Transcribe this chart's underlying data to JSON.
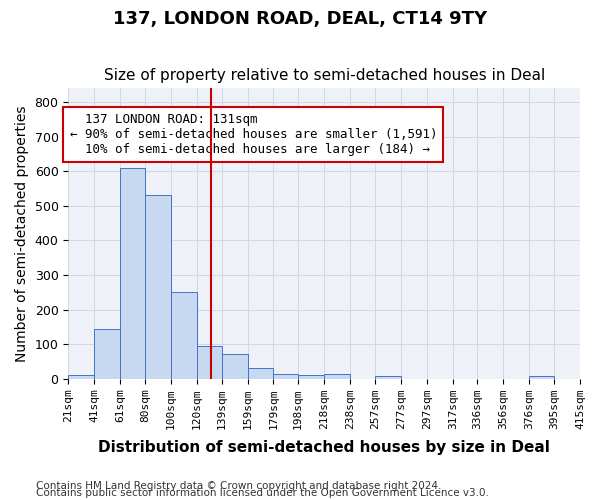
{
  "title": "137, LONDON ROAD, DEAL, CT14 9TY",
  "subtitle": "Size of property relative to semi-detached houses in Deal",
  "xlabel": "Distribution of semi-detached houses by size in Deal",
  "ylabel": "Number of semi-detached properties",
  "footnote1": "Contains HM Land Registry data © Crown copyright and database right 2024.",
  "footnote2": "Contains public sector information licensed under the Open Government Licence v3.0.",
  "bar_color": "#c6d9f0",
  "bar_edge_color": "#4472c4",
  "annotation_box_color": "#ffffff",
  "annotation_box_edge": "#cc0000",
  "vline_color": "#cc0000",
  "property_size": 131,
  "property_label": "137 LONDON ROAD: 131sqm",
  "pct_smaller": 90,
  "n_smaller": 1591,
  "pct_larger": 10,
  "n_larger": 184,
  "bins": [
    21,
    41,
    61,
    80,
    100,
    120,
    139,
    159,
    179,
    198,
    218,
    238,
    257,
    277,
    297,
    317,
    336,
    356,
    376,
    395,
    415
  ],
  "bin_labels": [
    "21sqm",
    "41sqm",
    "61sqm",
    "80sqm",
    "100sqm",
    "120sqm",
    "139sqm",
    "159sqm",
    "179sqm",
    "198sqm",
    "218sqm",
    "238sqm",
    "257sqm",
    "277sqm",
    "297sqm",
    "317sqm",
    "336sqm",
    "356sqm",
    "376sqm",
    "395sqm",
    "415sqm"
  ],
  "counts": [
    10,
    145,
    610,
    530,
    250,
    95,
    70,
    32,
    13,
    10,
    13,
    0,
    8,
    0,
    0,
    0,
    0,
    0,
    7,
    0
  ],
  "ylim": [
    0,
    840
  ],
  "yticks": [
    0,
    100,
    200,
    300,
    400,
    500,
    600,
    700,
    800
  ],
  "grid_color": "#d0d8e8",
  "bg_color": "#eef2f8",
  "title_fontsize": 13,
  "subtitle_fontsize": 11,
  "axis_label_fontsize": 10,
  "tick_fontsize": 8,
  "annotation_fontsize": 9,
  "footnote_fontsize": 7.5
}
